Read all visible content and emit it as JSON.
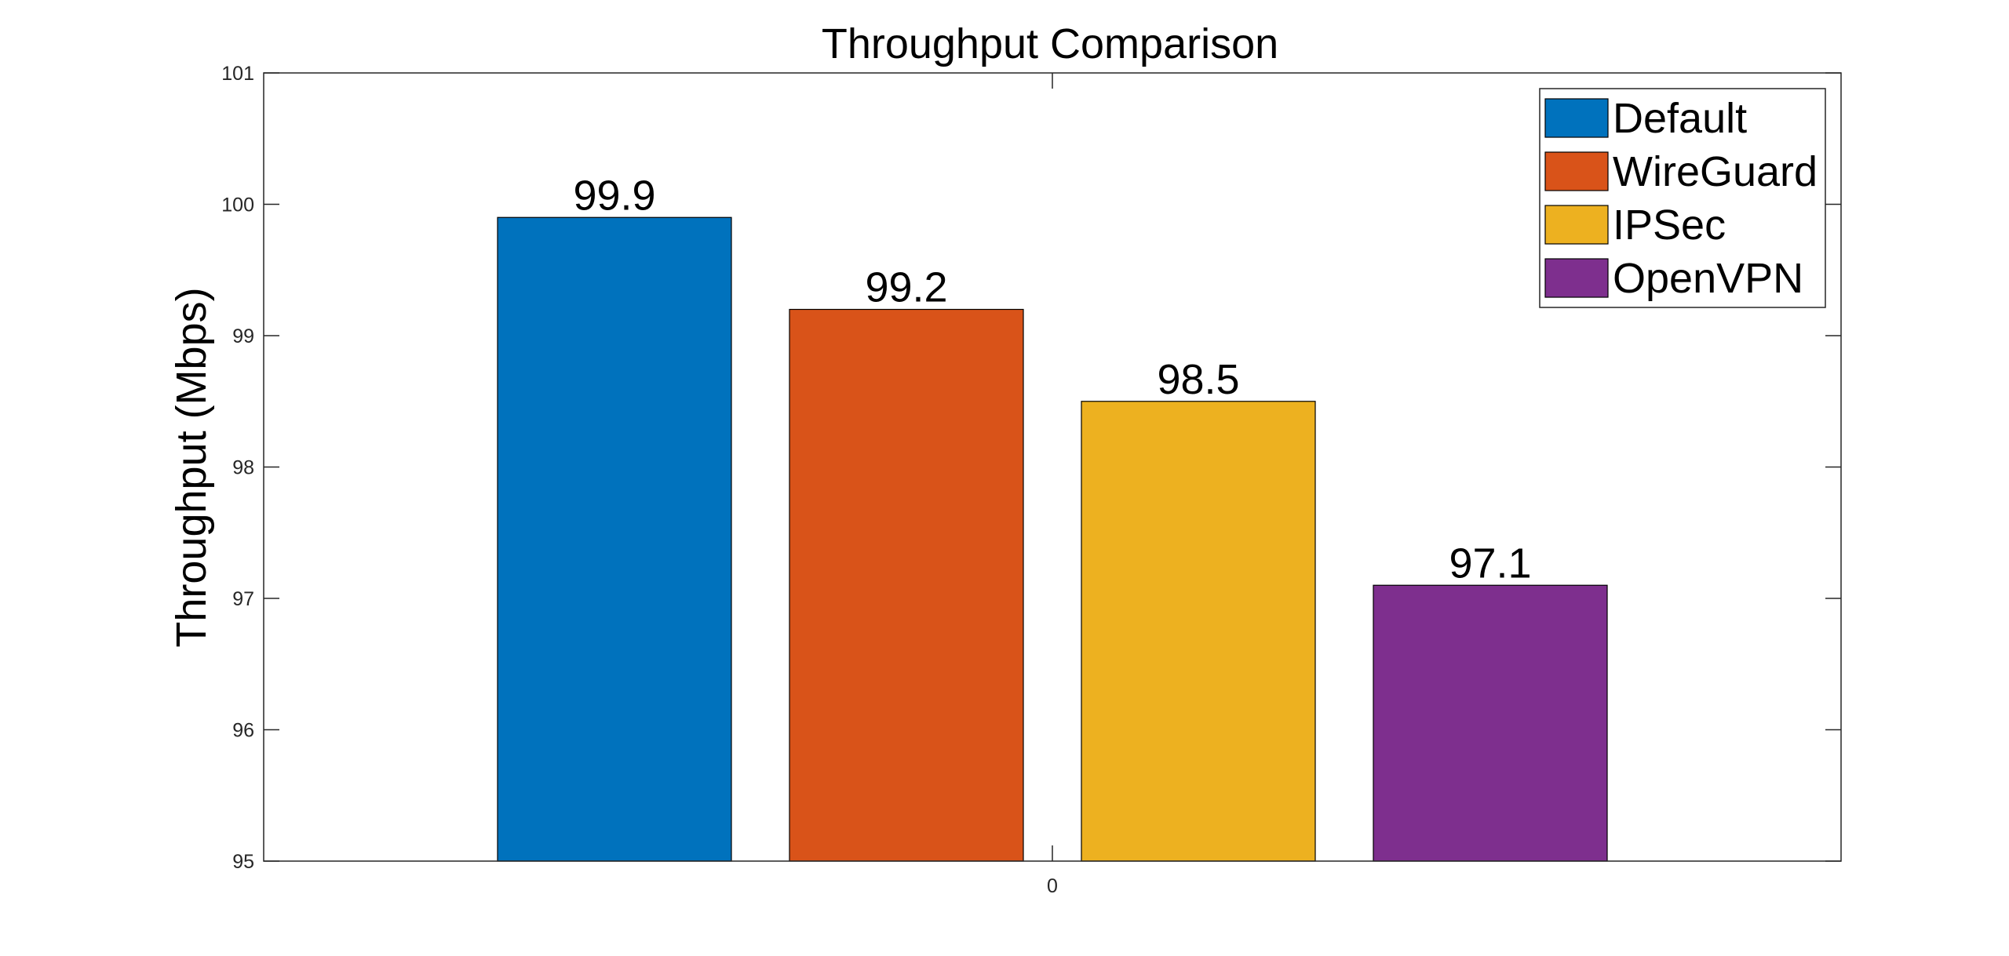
{
  "chart_data": {
    "type": "bar",
    "title": "Throughput Comparison",
    "xlabel": "",
    "ylabel": "Throughput (Mbps)",
    "categories": [
      "0"
    ],
    "ylim": [
      95,
      101
    ],
    "yticks": [
      "95",
      "96",
      "97",
      "98",
      "99",
      "100",
      "101"
    ],
    "grid": false,
    "legend_position": "top-right",
    "series": [
      {
        "name": "Default",
        "values": [
          99.9
        ],
        "label": "99.9",
        "color": "#0072BD"
      },
      {
        "name": "WireGuard",
        "values": [
          99.2
        ],
        "label": "99.2",
        "color": "#D95319"
      },
      {
        "name": "IPSec",
        "values": [
          98.5
        ],
        "label": "98.5",
        "color": "#EDB120"
      },
      {
        "name": "OpenVPN",
        "values": [
          97.1
        ],
        "label": "97.1",
        "color": "#7E2F8E"
      }
    ]
  }
}
